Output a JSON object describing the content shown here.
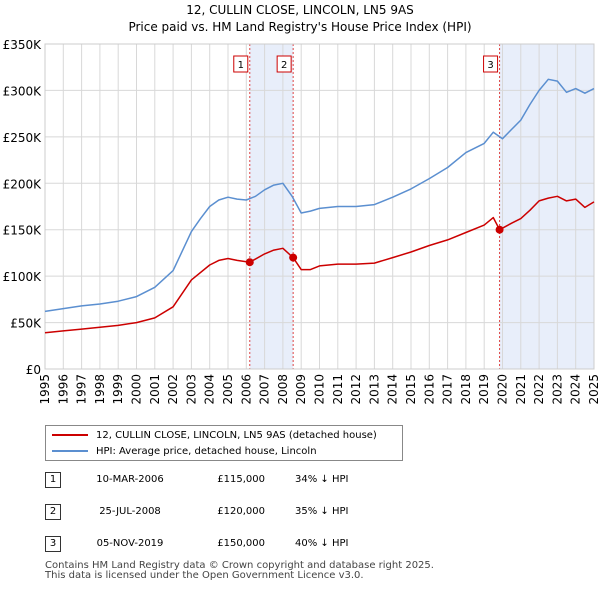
{
  "chart_data": {
    "type": "line",
    "title": "12, CULLIN CLOSE, LINCOLN, LN5 9AS",
    "subtitle": "Price paid vs. HM Land Registry's House Price Index (HPI)",
    "xlim": [
      1995,
      2025
    ],
    "ylim": [
      0,
      350000
    ],
    "x_ticks": [
      1995,
      1996,
      1997,
      1998,
      1999,
      2000,
      2001,
      2002,
      2003,
      2004,
      2005,
      2006,
      2007,
      2008,
      2009,
      2010,
      2011,
      2012,
      2013,
      2014,
      2015,
      2016,
      2017,
      2018,
      2019,
      2020,
      2021,
      2022,
      2023,
      2024,
      2025
    ],
    "y_ticks": [
      0,
      50000,
      100000,
      150000,
      200000,
      250000,
      300000,
      350000
    ],
    "y_tick_labels": [
      "£0",
      "£50K",
      "£100K",
      "£150K",
      "£200K",
      "£250K",
      "£300K",
      "£350K"
    ],
    "grid": true,
    "series": [
      {
        "name": "12, CULLIN CLOSE, LINCOLN, LN5 9AS (detached house)",
        "color": "#cc0000",
        "x": [
          1995.0,
          1996.0,
          1997.0,
          1998.0,
          1999.0,
          2000.0,
          2001.0,
          2002.0,
          2003.0,
          2004.0,
          2004.5,
          2005.0,
          2005.5,
          2006.19,
          2007.0,
          2007.5,
          2008.0,
          2008.56,
          2009.0,
          2009.5,
          2010.0,
          2011.0,
          2012.0,
          2013.0,
          2014.0,
          2015.0,
          2016.0,
          2017.0,
          2018.0,
          2019.0,
          2019.5,
          2019.84,
          2020.5,
          2021.0,
          2021.5,
          2022.0,
          2022.5,
          2023.0,
          2023.5,
          2024.0,
          2024.5,
          2025.0
        ],
        "values": [
          39000,
          41000,
          43000,
          45000,
          47000,
          50000,
          55000,
          67000,
          96000,
          112000,
          117000,
          119000,
          117000,
          115000,
          124000,
          128000,
          130000,
          120000,
          107000,
          107000,
          111000,
          113000,
          113000,
          114000,
          120000,
          126000,
          133000,
          139000,
          147000,
          155000,
          163000,
          150000,
          157000,
          162000,
          171000,
          181000,
          184000,
          186000,
          181000,
          183000,
          174000,
          180000
        ]
      },
      {
        "name": "HPI: Average price, detached house, Lincoln",
        "color": "#5b8fd0",
        "x": [
          1995.0,
          1996.0,
          1997.0,
          1998.0,
          1999.0,
          2000.0,
          2001.0,
          2002.0,
          2003.0,
          2003.5,
          2004.0,
          2004.5,
          2005.0,
          2005.5,
          2006.0,
          2006.5,
          2007.0,
          2007.5,
          2008.0,
          2008.5,
          2009.0,
          2009.5,
          2010.0,
          2011.0,
          2012.0,
          2013.0,
          2014.0,
          2015.0,
          2016.0,
          2017.0,
          2018.0,
          2019.0,
          2019.5,
          2020.0,
          2020.5,
          2021.0,
          2021.5,
          2022.0,
          2022.5,
          2023.0,
          2023.5,
          2024.0,
          2024.5,
          2025.0
        ],
        "values": [
          62000,
          65000,
          68000,
          70000,
          73000,
          78000,
          88000,
          106000,
          148000,
          162000,
          175000,
          182000,
          185000,
          183000,
          182000,
          186000,
          193000,
          198000,
          200000,
          186000,
          168000,
          170000,
          173000,
          175000,
          175000,
          177000,
          185000,
          194000,
          205000,
          217000,
          233000,
          243000,
          255000,
          248000,
          258000,
          268000,
          285000,
          300000,
          312000,
          310000,
          298000,
          302000,
          297000,
          302000
        ]
      }
    ],
    "sales": [
      {
        "label": "1",
        "x": 2006.19,
        "value": 115000
      },
      {
        "label": "2",
        "x": 2008.56,
        "value": 120000
      },
      {
        "label": "3",
        "x": 2019.84,
        "value": 150000
      }
    ],
    "shaded_spans": [
      [
        2006.19,
        2008.56
      ],
      [
        2019.84,
        2025.0
      ]
    ],
    "xlabel": "",
    "ylabel": ""
  },
  "legend": {
    "series1_label": "12, CULLIN CLOSE, LINCOLN, LN5 9AS (detached house)",
    "series2_label": "HPI: Average price, detached house, Lincoln",
    "series1_color": "#cc0000",
    "series2_color": "#5b8fd0"
  },
  "transactions": [
    {
      "num": "1",
      "date": "10-MAR-2006",
      "price": "£115,000",
      "hpi": "34% ↓ HPI"
    },
    {
      "num": "2",
      "date": "25-JUL-2008",
      "price": "£120,000",
      "hpi": "35% ↓ HPI"
    },
    {
      "num": "3",
      "date": "05-NOV-2019",
      "price": "£150,000",
      "hpi": "40% ↓ HPI"
    }
  ],
  "footer": {
    "line1": "Contains HM Land Registry data © Crown copyright and database right 2025.",
    "line2": "This data is licensed under the Open Government Licence v3.0."
  }
}
